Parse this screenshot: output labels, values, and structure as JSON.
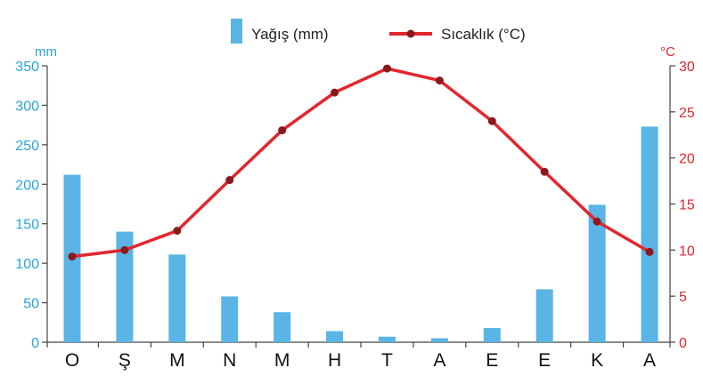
{
  "chart_data": {
    "type": "bar",
    "categories": [
      "O",
      "Ş",
      "M",
      "N",
      "M",
      "H",
      "T",
      "A",
      "E",
      "E",
      "K",
      "A"
    ],
    "series": [
      {
        "name": "Yağış (mm)",
        "type": "bar",
        "axis": "left",
        "color": "#5ab4e5",
        "values": [
          212,
          140,
          111,
          58,
          38,
          14,
          7,
          5,
          18,
          67,
          174,
          273
        ]
      },
      {
        "name": "Sıcaklık (°C)",
        "type": "line",
        "axis": "right",
        "color": "#e3262d",
        "marker_color": "#8b1a1e",
        "values": [
          9.3,
          10.0,
          12.1,
          17.6,
          23.0,
          27.1,
          29.7,
          28.4,
          24.0,
          18.5,
          13.1,
          9.8
        ]
      }
    ],
    "y_left": {
      "unit": "mm",
      "ylim": [
        0,
        350
      ],
      "ticks": [
        "0",
        "50",
        "100",
        "150",
        "200",
        "250",
        "300",
        "350"
      ],
      "color": "#2aa3d6"
    },
    "y_right": {
      "unit": "°C",
      "ylim": [
        0,
        30
      ],
      "ticks": [
        "0",
        "5",
        "10",
        "15",
        "20",
        "25",
        "30"
      ],
      "color": "#e3262d"
    },
    "legend": {
      "placement": "top-center",
      "items": [
        "Yağış (mm)",
        "Sıcaklık (°C)"
      ]
    },
    "grid": false
  }
}
